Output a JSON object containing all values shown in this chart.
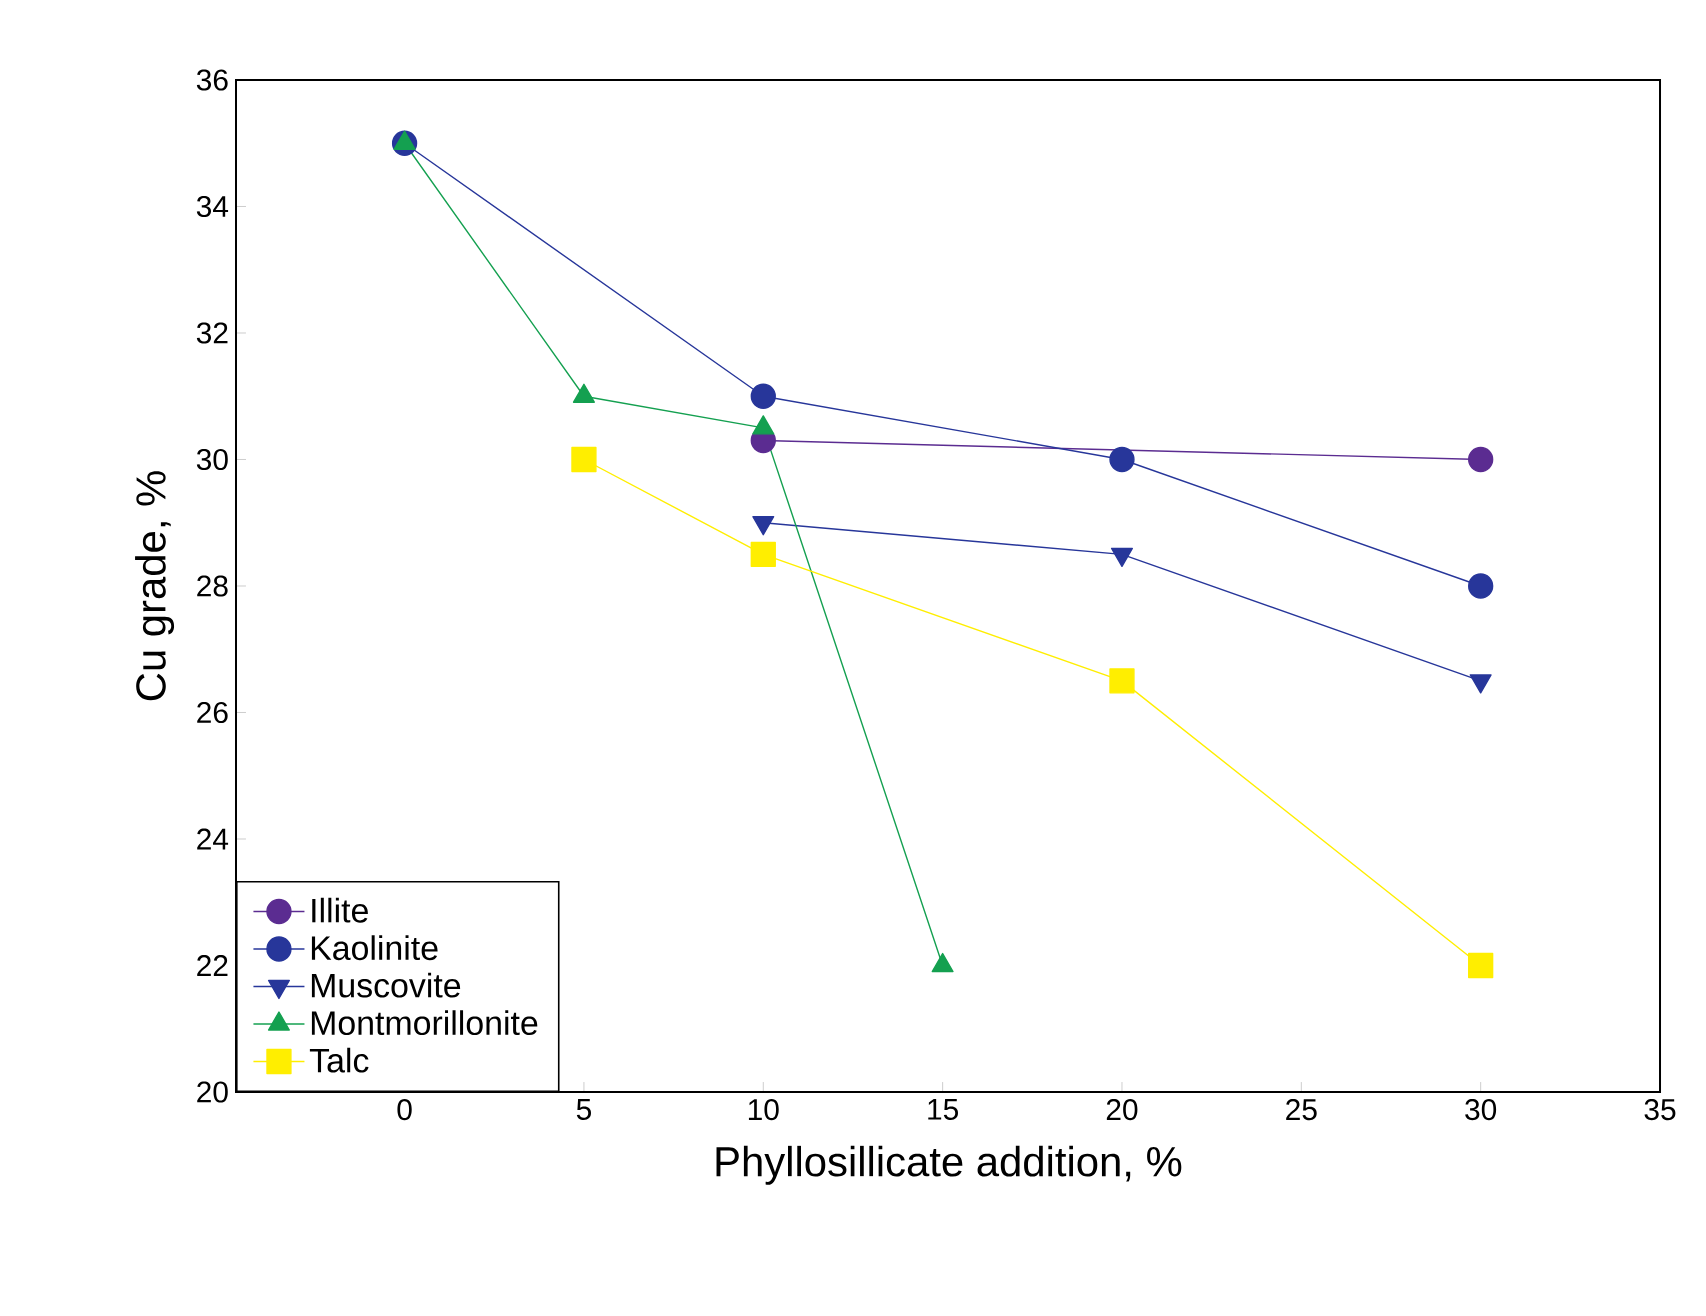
{
  "chart_data": {
    "type": "line",
    "xlabel": "Phyllosillicate addition, %",
    "ylabel": "Cu grade, %",
    "xlim": [
      -4.7,
      35
    ],
    "ylim": [
      20,
      36
    ],
    "xticks": [
      0,
      5,
      10,
      15,
      20,
      25,
      30,
      35
    ],
    "yticks": [
      20,
      22,
      24,
      26,
      28,
      30,
      32,
      34,
      36
    ],
    "legend": "bottom left",
    "grid": false,
    "series": [
      {
        "name": "Illite",
        "color": "#5b2c91",
        "marker": "circle",
        "x": [
          10,
          20,
          30
        ],
        "values": [
          30.3,
          null,
          30
        ]
      },
      {
        "name": "Kaolinite",
        "color": "#27369a",
        "marker": "circle",
        "x": [
          0,
          10,
          20,
          30
        ],
        "values": [
          35,
          31,
          30,
          28
        ]
      },
      {
        "name": "Muscovite",
        "color": "#27369a",
        "marker": "triangle-down",
        "x": [
          10,
          20,
          30
        ],
        "values": [
          29,
          28.5,
          26.5
        ]
      },
      {
        "name": "Montmorillonite",
        "color": "#14a050",
        "marker": "triangle",
        "x": [
          0,
          5,
          10,
          15
        ],
        "values": [
          35,
          31,
          30.5,
          22
        ]
      },
      {
        "name": "Talc",
        "color": "#ffee00",
        "marker": "square",
        "x": [
          5,
          10,
          20,
          30
        ],
        "values": [
          30,
          28.5,
          26.5,
          22
        ]
      }
    ]
  }
}
